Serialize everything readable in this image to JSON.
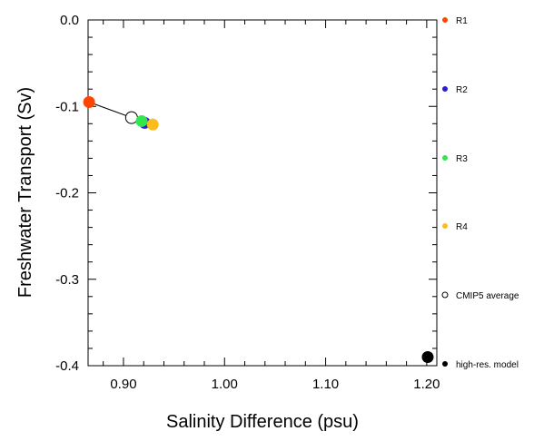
{
  "chart_data": {
    "type": "scatter",
    "title": "",
    "xlabel": "Salinity Difference (psu)",
    "ylabel": "Freshwater Transport (Sv)",
    "xlim": [
      0.865,
      1.21
    ],
    "ylim": [
      -0.4,
      0.0
    ],
    "x_ticks": [
      0.9,
      1.0,
      1.1,
      1.2
    ],
    "x_tick_labels": [
      "0.90",
      "1.00",
      "1.10",
      "1.20"
    ],
    "y_ticks": [
      0.0,
      -0.1,
      -0.2,
      -0.3,
      -0.4
    ],
    "y_tick_labels": [
      "0.0",
      "-0.1",
      "-0.2",
      "-0.3",
      "-0.4"
    ],
    "grid": false,
    "legend_placement": "right",
    "series": [
      {
        "name": "R1",
        "color": "#ff4500",
        "filled": true,
        "x": 0.866,
        "y": -0.095
      },
      {
        "name": "R2",
        "color": "#2a1cd4",
        "filled": true,
        "x": 0.921,
        "y": -0.119
      },
      {
        "name": "R3",
        "color": "#33e64d",
        "filled": true,
        "x": 0.918,
        "y": -0.117
      },
      {
        "name": "R4",
        "color": "#fbbd1b",
        "filled": true,
        "x": 0.929,
        "y": -0.121
      },
      {
        "name": "CMIP5 average",
        "color": "#000000",
        "filled": false,
        "x": 0.908,
        "y": -0.113
      },
      {
        "name": "high-res. model",
        "color": "#000000",
        "filled": true,
        "x": 1.201,
        "y": -0.39
      }
    ],
    "connector": {
      "from": "R1",
      "to": "CMIP5 average",
      "color": "#000000"
    }
  }
}
